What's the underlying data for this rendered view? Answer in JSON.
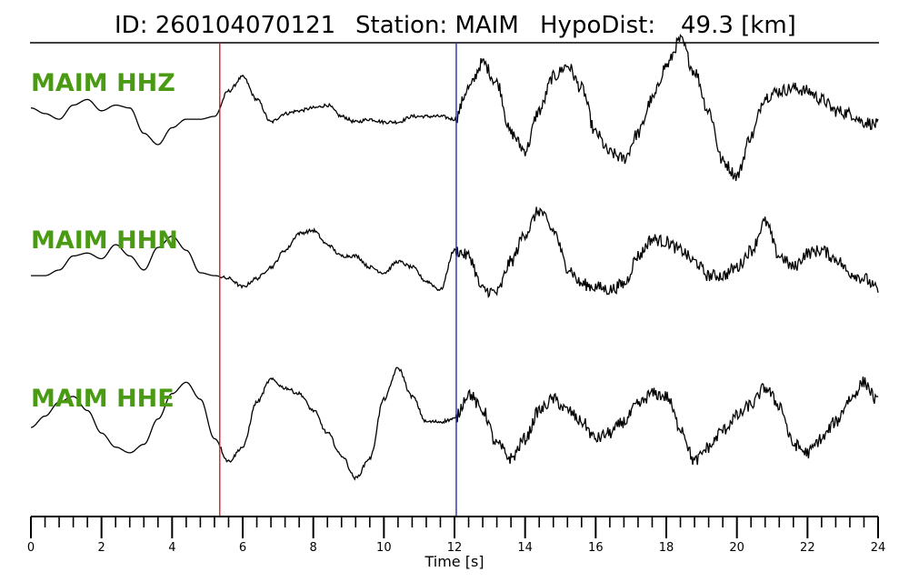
{
  "header": {
    "id_text": "ID: 260104070121",
    "station_text": "Station: MAIM",
    "hypodist_text": "HypoDist:",
    "hypodist_value": "49.3 [km]"
  },
  "chart_data": {
    "type": "line",
    "title": "ID: 260104070121   Station: MAIM   HypoDist:    49.3 [km]",
    "xlabel": "Time [s]",
    "ylabel": "",
    "xlim": [
      0,
      24
    ],
    "x_major_ticks": [
      0,
      2,
      4,
      6,
      8,
      10,
      12,
      14,
      16,
      18,
      20,
      22,
      24
    ],
    "x_minor_step": 0.4,
    "grid": false,
    "markers": [
      {
        "type": "p-pick",
        "time": 5.35,
        "color": "#e31a1c"
      },
      {
        "type": "s-pick",
        "time": 12.05,
        "color": "#1f2fb5"
      }
    ],
    "series": [
      {
        "name": "MAIM HHZ",
        "color": "#000000",
        "label_color": "#4a9a14",
        "amplitude_scale": "normalized",
        "x": [
          0,
          0.4,
          0.8,
          1.2,
          1.6,
          2,
          2.4,
          2.8,
          3.2,
          3.6,
          4,
          4.4,
          4.8,
          5.2,
          5.6,
          6,
          6.4,
          6.8,
          7.2,
          7.6,
          8,
          8.4,
          8.8,
          9.2,
          9.6,
          10,
          10.4,
          10.8,
          11.2,
          11.6,
          12,
          12.4,
          12.8,
          13.2,
          13.6,
          14,
          14.4,
          14.8,
          15.2,
          15.6,
          16,
          16.4,
          16.8,
          17.2,
          17.6,
          18,
          18.4,
          18.8,
          19.2,
          19.6,
          20,
          20.4,
          20.8,
          21.2,
          21.6,
          22,
          22.4,
          22.8,
          23.2,
          23.6,
          24
        ],
        "values": [
          0.15,
          0.05,
          -0.05,
          0.2,
          0.3,
          0.1,
          0.2,
          0.15,
          -0.3,
          -0.5,
          -0.2,
          -0.05,
          -0.05,
          0.0,
          0.45,
          0.7,
          0.3,
          -0.1,
          0.05,
          0.1,
          0.15,
          0.2,
          0.0,
          -0.1,
          -0.05,
          -0.1,
          -0.1,
          0.0,
          0.0,
          0.0,
          -0.05,
          0.5,
          0.95,
          0.6,
          -0.3,
          -0.6,
          0.1,
          0.7,
          0.9,
          0.5,
          -0.3,
          -0.65,
          -0.75,
          -0.3,
          0.3,
          0.9,
          1.35,
          0.8,
          0.1,
          -0.8,
          -1.05,
          -0.35,
          0.35,
          0.45,
          0.5,
          0.45,
          0.3,
          0.1,
          0.05,
          -0.1,
          -0.15
        ]
      },
      {
        "name": "MAIM HHN",
        "color": "#000000",
        "label_color": "#4a9a14",
        "amplitude_scale": "normalized",
        "x": [
          0,
          0.4,
          0.8,
          1.2,
          1.6,
          2,
          2.4,
          2.8,
          3.2,
          3.6,
          4,
          4.4,
          4.8,
          5.2,
          5.6,
          6,
          6.4,
          6.8,
          7.2,
          7.6,
          8,
          8.4,
          8.8,
          9.2,
          9.6,
          10,
          10.4,
          10.8,
          11.2,
          11.6,
          12,
          12.4,
          12.8,
          13.2,
          13.6,
          14,
          14.4,
          14.8,
          15.2,
          15.6,
          16,
          16.4,
          16.8,
          17.2,
          17.6,
          18,
          18.4,
          18.8,
          19.2,
          19.6,
          20,
          20.4,
          20.8,
          21.2,
          21.6,
          22,
          22.4,
          22.8,
          23.2,
          23.6,
          24
        ],
        "values": [
          -0.05,
          -0.05,
          0.05,
          0.3,
          0.35,
          0.25,
          0.5,
          0.3,
          0.05,
          0.45,
          0.65,
          0.4,
          0.0,
          -0.05,
          -0.1,
          -0.25,
          -0.1,
          0.1,
          0.4,
          0.7,
          0.75,
          0.5,
          0.3,
          0.3,
          0.1,
          0.0,
          0.2,
          0.1,
          -0.15,
          -0.3,
          0.4,
          0.3,
          -0.3,
          -0.35,
          0.2,
          0.7,
          1.1,
          0.75,
          0.1,
          -0.2,
          -0.25,
          -0.3,
          -0.2,
          0.3,
          0.6,
          0.55,
          0.4,
          0.2,
          -0.05,
          -0.05,
          0.1,
          0.4,
          0.9,
          0.3,
          0.1,
          0.35,
          0.4,
          0.25,
          0.0,
          -0.1,
          -0.3
        ]
      },
      {
        "name": "MAIM HHE",
        "color": "#000000",
        "label_color": "#4a9a14",
        "amplitude_scale": "normalized",
        "x": [
          0,
          0.4,
          0.8,
          1.2,
          1.6,
          2,
          2.4,
          2.8,
          3.2,
          3.6,
          4,
          4.4,
          4.8,
          5.2,
          5.6,
          6,
          6.4,
          6.8,
          7.2,
          7.6,
          8,
          8.4,
          8.8,
          9.2,
          9.6,
          10,
          10.4,
          10.8,
          11.2,
          11.6,
          12,
          12.4,
          12.8,
          13.2,
          13.6,
          14,
          14.4,
          14.8,
          15.2,
          15.6,
          16,
          16.4,
          16.8,
          17.2,
          17.6,
          18,
          18.4,
          18.8,
          19.2,
          19.6,
          20,
          20.4,
          20.8,
          21.2,
          21.6,
          22,
          22.4,
          22.8,
          23.2,
          23.6,
          24
        ],
        "values": [
          0.0,
          0.2,
          0.45,
          0.55,
          0.3,
          -0.1,
          -0.35,
          -0.45,
          -0.3,
          0.15,
          0.6,
          0.8,
          0.5,
          -0.2,
          -0.6,
          -0.35,
          0.45,
          0.85,
          0.7,
          0.6,
          0.3,
          -0.1,
          -0.5,
          -0.9,
          -0.55,
          0.5,
          1.05,
          0.55,
          0.1,
          0.1,
          0.15,
          0.6,
          0.3,
          -0.3,
          -0.55,
          -0.2,
          0.3,
          0.5,
          0.3,
          0.1,
          -0.2,
          -0.1,
          0.1,
          0.4,
          0.6,
          0.55,
          0.0,
          -0.6,
          -0.35,
          -0.05,
          0.2,
          0.4,
          0.7,
          0.4,
          -0.3,
          -0.45,
          -0.2,
          0.1,
          0.5,
          0.8,
          0.45
        ]
      }
    ]
  }
}
